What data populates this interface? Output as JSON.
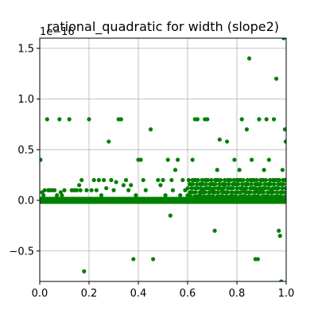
{
  "chart_data": {
    "type": "scatter",
    "title": "rational_quadratic for width (slope2)",
    "offset_label": "1e−16",
    "xlabel": "",
    "ylabel": "",
    "xlim": [
      0.0,
      1.0
    ],
    "ylim": [
      -0.8,
      1.6
    ],
    "xticks": [
      {
        "value": 0.0,
        "label": "0.0"
      },
      {
        "value": 0.2,
        "label": "0.2"
      },
      {
        "value": 0.4,
        "label": "0.4"
      },
      {
        "value": 0.6,
        "label": "0.6"
      },
      {
        "value": 0.8,
        "label": "0.8"
      },
      {
        "value": 1.0,
        "label": "1.0"
      }
    ],
    "yticks": [
      {
        "value": -0.5,
        "label": "−0.5"
      },
      {
        "value": 0.0,
        "label": "0.0"
      },
      {
        "value": 0.5,
        "label": "0.5"
      },
      {
        "value": 1.0,
        "label": "1.0"
      },
      {
        "value": 1.5,
        "label": "1.5"
      }
    ],
    "grid": true,
    "marker_color": "#008000",
    "series": [
      {
        "points": [
          [
            0.003,
            0.4
          ],
          [
            0.006,
            0.0
          ],
          [
            0.01,
            0.08
          ],
          [
            0.015,
            0.05
          ],
          [
            0.02,
            0.1
          ],
          [
            0.03,
            0.8
          ],
          [
            0.035,
            0.1
          ],
          [
            0.04,
            0.1
          ],
          [
            0.05,
            0.1
          ],
          [
            0.06,
            0.1
          ],
          [
            0.065,
            0.02
          ],
          [
            0.07,
            0.05
          ],
          [
            0.08,
            0.8
          ],
          [
            0.085,
            0.08
          ],
          [
            0.09,
            0.05
          ],
          [
            0.1,
            0.1
          ],
          [
            0.11,
            0.0
          ],
          [
            0.12,
            0.8
          ],
          [
            0.13,
            0.1
          ],
          [
            0.14,
            0.1
          ],
          [
            0.15,
            0.1
          ],
          [
            0.16,
            0.15
          ],
          [
            0.165,
            0.1
          ],
          [
            0.17,
            0.2
          ],
          [
            0.18,
            -0.7
          ],
          [
            0.19,
            0.1
          ],
          [
            0.2,
            0.8
          ],
          [
            0.21,
            0.1
          ],
          [
            0.22,
            0.2
          ],
          [
            0.23,
            0.1
          ],
          [
            0.24,
            0.2
          ],
          [
            0.25,
            0.05
          ],
          [
            0.26,
            0.2
          ],
          [
            0.27,
            0.12
          ],
          [
            0.28,
            0.58
          ],
          [
            0.29,
            0.2
          ],
          [
            0.3,
            0.1
          ],
          [
            0.31,
            0.18
          ],
          [
            0.32,
            0.8
          ],
          [
            0.33,
            0.8
          ],
          [
            0.34,
            0.15
          ],
          [
            0.35,
            0.2
          ],
          [
            0.36,
            0.1
          ],
          [
            0.37,
            0.15
          ],
          [
            0.38,
            -0.58
          ],
          [
            0.39,
            0.05
          ],
          [
            0.4,
            0.4
          ],
          [
            0.41,
            0.4
          ],
          [
            0.42,
            0.2
          ],
          [
            0.43,
            0.1
          ],
          [
            0.45,
            0.7
          ],
          [
            0.46,
            -0.58
          ],
          [
            0.48,
            0.2
          ],
          [
            0.49,
            0.15
          ],
          [
            0.5,
            0.2
          ],
          [
            0.51,
            0.05
          ],
          [
            0.52,
            0.4
          ],
          [
            0.53,
            -0.15
          ],
          [
            0.535,
            0.2
          ],
          [
            0.54,
            0.1
          ],
          [
            0.55,
            0.3
          ],
          [
            0.56,
            0.4
          ],
          [
            0.57,
            0.05
          ],
          [
            0.58,
            0.2
          ],
          [
            0.59,
            0.1
          ],
          [
            0.6,
            0.05
          ],
          [
            0.61,
            0.08
          ],
          [
            0.62,
            0.4
          ],
          [
            0.63,
            0.8
          ],
          [
            0.64,
            0.8
          ],
          [
            0.65,
            0.05
          ],
          [
            0.66,
            0.1
          ],
          [
            0.67,
            0.8
          ],
          [
            0.68,
            0.8
          ],
          [
            0.69,
            0.0
          ],
          [
            0.7,
            0.1
          ],
          [
            0.71,
            -0.3
          ],
          [
            0.72,
            0.3
          ],
          [
            0.73,
            0.6
          ],
          [
            0.74,
            0.1
          ],
          [
            0.75,
            0.15
          ],
          [
            0.76,
            0.58
          ],
          [
            0.77,
            0.2
          ],
          [
            0.78,
            0.05
          ],
          [
            0.79,
            0.4
          ],
          [
            0.8,
            0.2
          ],
          [
            0.81,
            0.3
          ],
          [
            0.82,
            0.8
          ],
          [
            0.83,
            0.1
          ],
          [
            0.84,
            0.7
          ],
          [
            0.85,
            1.4
          ],
          [
            0.86,
            0.4
          ],
          [
            0.87,
            0.2
          ],
          [
            0.875,
            -0.58
          ],
          [
            0.88,
            0.1
          ],
          [
            0.885,
            -0.58
          ],
          [
            0.89,
            0.8
          ],
          [
            0.9,
            0.1
          ],
          [
            0.91,
            0.3
          ],
          [
            0.92,
            0.8
          ],
          [
            0.93,
            0.4
          ],
          [
            0.94,
            0.1
          ],
          [
            0.95,
            0.8
          ],
          [
            0.96,
            1.2
          ],
          [
            0.965,
            0.2
          ],
          [
            0.97,
            -0.3
          ],
          [
            0.975,
            -0.35
          ],
          [
            0.98,
            -0.8
          ],
          [
            0.985,
            0.3
          ],
          [
            0.99,
            1.6
          ],
          [
            0.995,
            0.7
          ],
          [
            0.998,
            0.58
          ]
        ],
        "band": {
          "x_start": 0.0,
          "x_end": 1.0,
          "values": [
            0.0,
            0.015,
            -0.015
          ],
          "x_start_dense": 0.6,
          "dense_values": [
            0.04,
            0.08,
            0.12,
            0.16,
            0.2
          ]
        }
      }
    ]
  }
}
